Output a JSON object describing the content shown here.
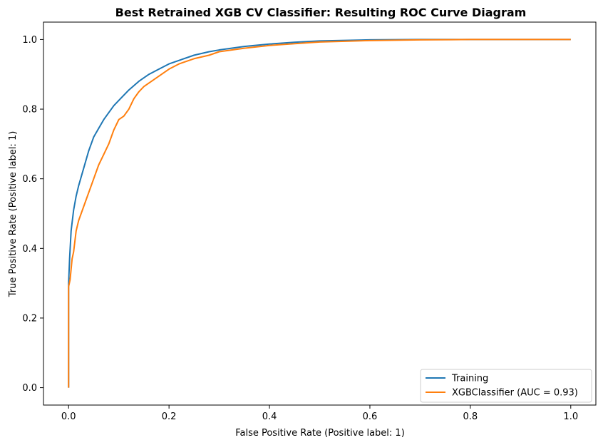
{
  "chart_data": {
    "type": "line",
    "title": "Best Retrained XGB CV Classifier: Resulting ROC Curve Diagram",
    "xlabel": "False Positive Rate (Positive label: 1)",
    "ylabel": "True Positive Rate (Positive label: 1)",
    "xlim": [
      -0.05,
      1.05
    ],
    "ylim": [
      -0.05,
      1.05
    ],
    "xticks": [
      "0.0",
      "0.2",
      "0.4",
      "0.6",
      "0.8",
      "1.0"
    ],
    "yticks": [
      "0.0",
      "0.2",
      "0.4",
      "0.6",
      "0.8",
      "1.0"
    ],
    "grid": false,
    "legend_position": "lower right",
    "series": [
      {
        "name": "Training",
        "color": "#1f77b4",
        "x": [
          0,
          0,
          0.002,
          0.005,
          0.01,
          0.015,
          0.02,
          0.03,
          0.04,
          0.05,
          0.06,
          0.07,
          0.08,
          0.09,
          0.1,
          0.12,
          0.14,
          0.16,
          0.18,
          0.2,
          0.22,
          0.25,
          0.28,
          0.3,
          0.35,
          0.4,
          0.45,
          0.5,
          0.6,
          0.7,
          0.8,
          1.0
        ],
        "y": [
          0,
          0.3,
          0.37,
          0.45,
          0.51,
          0.55,
          0.58,
          0.63,
          0.68,
          0.72,
          0.745,
          0.77,
          0.79,
          0.81,
          0.825,
          0.855,
          0.88,
          0.9,
          0.915,
          0.93,
          0.94,
          0.955,
          0.965,
          0.97,
          0.98,
          0.987,
          0.992,
          0.996,
          0.999,
          1.0,
          1.0,
          1.0
        ]
      },
      {
        "name": "XGBClassifier (AUC = 0.93)",
        "color": "#ff7f0e",
        "x": [
          0,
          0,
          0.003,
          0.007,
          0.01,
          0.015,
          0.02,
          0.03,
          0.04,
          0.05,
          0.06,
          0.07,
          0.08,
          0.09,
          0.1,
          0.11,
          0.12,
          0.13,
          0.14,
          0.15,
          0.16,
          0.18,
          0.2,
          0.22,
          0.25,
          0.28,
          0.3,
          0.35,
          0.4,
          0.45,
          0.5,
          0.55,
          0.6,
          0.7,
          0.8,
          1.0
        ],
        "y": [
          0,
          0.29,
          0.31,
          0.37,
          0.39,
          0.45,
          0.48,
          0.52,
          0.56,
          0.6,
          0.64,
          0.67,
          0.7,
          0.74,
          0.77,
          0.78,
          0.8,
          0.83,
          0.85,
          0.865,
          0.875,
          0.895,
          0.915,
          0.93,
          0.945,
          0.955,
          0.965,
          0.975,
          0.983,
          0.988,
          0.993,
          0.995,
          0.997,
          0.999,
          1.0,
          1.0
        ]
      }
    ]
  }
}
